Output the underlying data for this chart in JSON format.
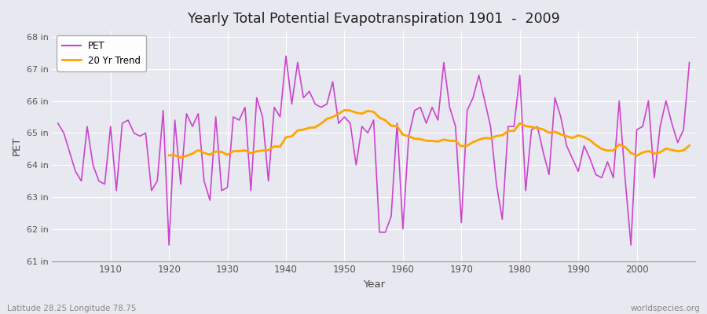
{
  "title": "Yearly Total Potential Evapotranspiration 1901  -  2009",
  "xlabel": "Year",
  "ylabel": "PET",
  "subtitle_left": "Latitude 28.25 Longitude 78.75",
  "subtitle_right": "worldspecies.org",
  "pet_color": "#cc44cc",
  "trend_color": "#ffa500",
  "bg_color": "#e8e8f0",
  "plot_bg_color": "#e8e8f0",
  "ylim": [
    61.0,
    68.2
  ],
  "yticks": [
    61,
    62,
    63,
    64,
    65,
    66,
    67,
    68
  ],
  "ytick_labels": [
    "61 in",
    "62 in",
    "63 in",
    "64 in",
    "65 in",
    "66 in",
    "67 in",
    "68 in"
  ],
  "years": [
    1901,
    1902,
    1903,
    1904,
    1905,
    1906,
    1907,
    1908,
    1909,
    1910,
    1911,
    1912,
    1913,
    1914,
    1915,
    1916,
    1917,
    1918,
    1919,
    1920,
    1921,
    1922,
    1923,
    1924,
    1925,
    1926,
    1927,
    1928,
    1929,
    1930,
    1931,
    1932,
    1933,
    1934,
    1935,
    1936,
    1937,
    1938,
    1939,
    1940,
    1941,
    1942,
    1943,
    1944,
    1945,
    1946,
    1947,
    1948,
    1949,
    1950,
    1951,
    1952,
    1953,
    1954,
    1955,
    1956,
    1957,
    1958,
    1959,
    1960,
    1961,
    1962,
    1963,
    1964,
    1965,
    1966,
    1967,
    1968,
    1969,
    1970,
    1971,
    1972,
    1973,
    1974,
    1975,
    1976,
    1977,
    1978,
    1979,
    1980,
    1981,
    1982,
    1983,
    1984,
    1985,
    1986,
    1987,
    1988,
    1989,
    1990,
    1991,
    1992,
    1993,
    1994,
    1995,
    1996,
    1997,
    1998,
    1999,
    2000,
    2001,
    2002,
    2003,
    2004,
    2005,
    2006,
    2007,
    2008,
    2009
  ],
  "pet": [
    65.3,
    65.0,
    64.4,
    63.8,
    63.5,
    65.2,
    64.0,
    63.5,
    63.4,
    65.2,
    63.2,
    65.3,
    65.4,
    65.0,
    64.9,
    65.0,
    63.2,
    63.5,
    65.7,
    61.5,
    65.4,
    63.4,
    65.6,
    65.2,
    65.6,
    63.5,
    62.9,
    65.5,
    63.2,
    63.3,
    65.5,
    65.4,
    65.8,
    63.2,
    66.1,
    65.5,
    63.5,
    65.8,
    65.5,
    67.4,
    65.9,
    67.2,
    66.1,
    66.3,
    65.9,
    65.8,
    65.9,
    66.6,
    65.3,
    65.5,
    65.3,
    64.0,
    65.2,
    65.0,
    65.4,
    61.9,
    61.9,
    62.4,
    65.3,
    62.0,
    64.9,
    65.7,
    65.8,
    65.3,
    65.8,
    65.4,
    67.2,
    65.8,
    65.2,
    62.2,
    65.7,
    66.1,
    66.8,
    66.0,
    65.2,
    63.4,
    62.3,
    65.2,
    65.2,
    66.8,
    63.2,
    65.1,
    65.2,
    64.4,
    63.7,
    66.1,
    65.5,
    64.6,
    64.2,
    63.8,
    64.6,
    64.2,
    63.7,
    63.6,
    64.1,
    63.6,
    66.0,
    63.6,
    61.5,
    65.1,
    65.2,
    66.0,
    63.6,
    65.2,
    66.0,
    65.3,
    64.7,
    65.1,
    67.2
  ],
  "xticks": [
    1910,
    1920,
    1930,
    1940,
    1950,
    1960,
    1970,
    1980,
    1990,
    2000
  ],
  "trend_window": 20,
  "grid_color": "#ffffff",
  "grid_linewidth": 0.8,
  "spine_color": "#aaaaaa"
}
